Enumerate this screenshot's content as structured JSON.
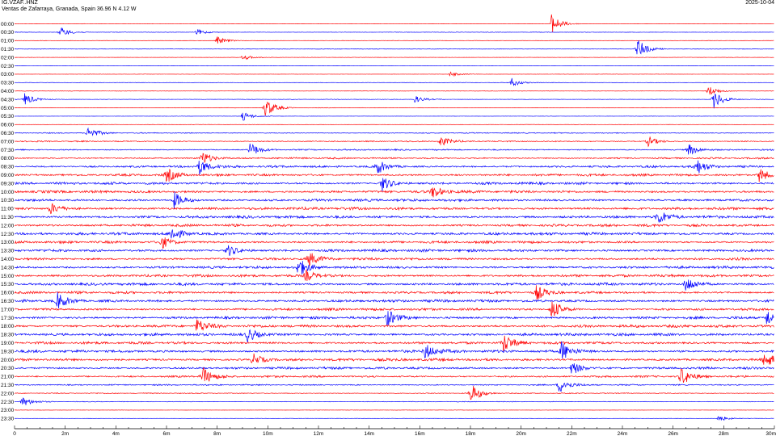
{
  "header": {
    "station": "IG.VZAF..HNZ",
    "location": "Ventas de Zafarraya, Granada, Spain  36.96 N 4.12 W",
    "date": "2025-10-04"
  },
  "chart_data": {
    "type": "line",
    "title": "",
    "subtitle": "",
    "xlabel": "",
    "ylabel": "",
    "x_range_minutes": [
      0,
      30
    ],
    "x_ticks": [
      "0",
      "2m",
      "4m",
      "6m",
      "8m",
      "10m",
      "12m",
      "14m",
      "16m",
      "18m",
      "20m",
      "22m",
      "24m",
      "26m",
      "28m",
      "30m"
    ],
    "row_labels": [
      "00:00",
      "00:30",
      "01:00",
      "01:30",
      "02:00",
      "02:30",
      "03:00",
      "03:30",
      "04:00",
      "04:30",
      "05:00",
      "05:30",
      "06:00",
      "06:30",
      "07:00",
      "07:30",
      "08:00",
      "08:30",
      "09:00",
      "09:30",
      "10:00",
      "10:30",
      "11:00",
      "11:30",
      "12:00",
      "12:30",
      "13:00",
      "13:30",
      "14:00",
      "14:30",
      "15:00",
      "15:30",
      "16:00",
      "16:30",
      "17:00",
      "17:30",
      "18:00",
      "18:30",
      "19:00",
      "19:30",
      "20:00",
      "20:30",
      "21:00",
      "21:30",
      "22:00",
      "22:30",
      "23:00",
      "23:30"
    ],
    "row_colors": [
      "#ff0000",
      "#0000ff"
    ],
    "series": [
      {
        "values": [
          0.1,
          0.15,
          0.1,
          0.15,
          0.1,
          0.1,
          0.1,
          0.12,
          0.15,
          0.15,
          0.15,
          0.1,
          0.1,
          0.3,
          0.4,
          0.4,
          0.5,
          0.65,
          0.7,
          0.75,
          0.8,
          0.75,
          0.8,
          0.8,
          0.75,
          0.8,
          0.75,
          0.8,
          0.75,
          0.75,
          0.75,
          0.8,
          0.75,
          0.8,
          0.75,
          0.75,
          0.8,
          0.8,
          0.75,
          0.8,
          0.8,
          0.7,
          0.6,
          0.4,
          0.3,
          0.2,
          0.1,
          0.1
        ]
      }
    ],
    "bursts": [
      {
        "row": 0,
        "minute": 21.2,
        "amp": 0.95
      },
      {
        "row": 1,
        "minute": 1.8,
        "amp": 0.5
      },
      {
        "row": 1,
        "minute": 7.2,
        "amp": 0.3
      },
      {
        "row": 2,
        "minute": 8.0,
        "amp": 0.4
      },
      {
        "row": 3,
        "minute": 24.6,
        "amp": 1.0
      },
      {
        "row": 4,
        "minute": 9.0,
        "amp": 0.3
      },
      {
        "row": 6,
        "minute": 17.2,
        "amp": 0.25
      },
      {
        "row": 7,
        "minute": 19.6,
        "amp": 0.45
      },
      {
        "row": 8,
        "minute": 27.4,
        "amp": 0.5
      },
      {
        "row": 9,
        "minute": 0.4,
        "amp": 0.6
      },
      {
        "row": 9,
        "minute": 15.8,
        "amp": 0.35
      },
      {
        "row": 9,
        "minute": 27.6,
        "amp": 0.9
      },
      {
        "row": 10,
        "minute": 9.9,
        "amp": 0.95
      },
      {
        "row": 11,
        "minute": 9.0,
        "amp": 0.45
      },
      {
        "row": 13,
        "minute": 2.9,
        "amp": 0.6
      },
      {
        "row": 14,
        "minute": 16.8,
        "amp": 0.5
      },
      {
        "row": 14,
        "minute": 25.0,
        "amp": 0.5
      },
      {
        "row": 15,
        "minute": 9.3,
        "amp": 0.7
      },
      {
        "row": 15,
        "minute": 26.6,
        "amp": 0.6
      },
      {
        "row": 16,
        "minute": 7.4,
        "amp": 0.7
      },
      {
        "row": 17,
        "minute": 7.3,
        "amp": 0.8
      },
      {
        "row": 17,
        "minute": 14.3,
        "amp": 0.8
      },
      {
        "row": 17,
        "minute": 26.9,
        "amp": 0.8
      },
      {
        "row": 18,
        "minute": 6.0,
        "amp": 0.7
      },
      {
        "row": 18,
        "minute": 29.4,
        "amp": 0.7
      },
      {
        "row": 19,
        "minute": 14.5,
        "amp": 0.75
      },
      {
        "row": 20,
        "minute": 16.5,
        "amp": 0.6
      },
      {
        "row": 21,
        "minute": 6.3,
        "amp": 0.8
      },
      {
        "row": 22,
        "minute": 1.4,
        "amp": 0.6
      },
      {
        "row": 23,
        "minute": 25.4,
        "amp": 0.7
      },
      {
        "row": 25,
        "minute": 6.2,
        "amp": 0.7
      },
      {
        "row": 26,
        "minute": 5.8,
        "amp": 0.6
      },
      {
        "row": 27,
        "minute": 8.4,
        "amp": 0.6
      },
      {
        "row": 28,
        "minute": 11.6,
        "amp": 0.7
      },
      {
        "row": 29,
        "minute": 11.2,
        "amp": 0.9
      },
      {
        "row": 30,
        "minute": 11.5,
        "amp": 0.6
      },
      {
        "row": 31,
        "minute": 26.5,
        "amp": 0.8
      },
      {
        "row": 32,
        "minute": 20.6,
        "amp": 0.7
      },
      {
        "row": 33,
        "minute": 1.7,
        "amp": 0.8
      },
      {
        "row": 34,
        "minute": 21.2,
        "amp": 1.0
      },
      {
        "row": 35,
        "minute": 14.7,
        "amp": 0.9
      },
      {
        "row": 35,
        "minute": 29.7,
        "amp": 0.8
      },
      {
        "row": 36,
        "minute": 7.2,
        "amp": 0.7
      },
      {
        "row": 37,
        "minute": 9.2,
        "amp": 0.7
      },
      {
        "row": 38,
        "minute": 19.3,
        "amp": 0.9
      },
      {
        "row": 39,
        "minute": 16.2,
        "amp": 0.8
      },
      {
        "row": 39,
        "minute": 21.6,
        "amp": 1.0
      },
      {
        "row": 40,
        "minute": 9.4,
        "amp": 0.6
      },
      {
        "row": 40,
        "minute": 29.6,
        "amp": 0.8
      },
      {
        "row": 41,
        "minute": 22.0,
        "amp": 0.7
      },
      {
        "row": 42,
        "minute": 7.4,
        "amp": 1.0
      },
      {
        "row": 42,
        "minute": 26.3,
        "amp": 0.9
      },
      {
        "row": 43,
        "minute": 21.5,
        "amp": 0.8
      },
      {
        "row": 44,
        "minute": 18.0,
        "amp": 1.0
      },
      {
        "row": 45,
        "minute": 0.3,
        "amp": 0.5
      },
      {
        "row": 47,
        "minute": 27.8,
        "amp": 0.3
      }
    ]
  }
}
